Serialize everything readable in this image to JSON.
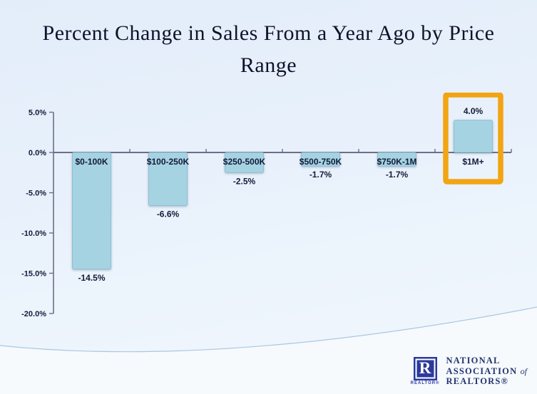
{
  "slide": {
    "title": "Percent Change in Sales From a Year Ago by Price Range"
  },
  "chart_data": {
    "type": "bar",
    "title": "Percent Change in Sales From a Year Ago by Price Range",
    "categories": [
      "$0-100K",
      "$100-250K",
      "$250-500K",
      "$500-750K",
      "$750K-1M",
      "$1M+"
    ],
    "values": [
      -14.5,
      -6.6,
      -2.5,
      -1.7,
      -1.7,
      4.0
    ],
    "value_labels": [
      "-14.5%",
      "-6.6%",
      "-2.5%",
      "-1.7%",
      "-1.7%",
      "4.0%"
    ],
    "y_ticks": [
      5,
      0,
      -5,
      -10,
      -15,
      -20
    ],
    "y_tick_labels": [
      "5.0%",
      "0.0%",
      "-5.0%",
      "-10.0%",
      "-15.0%",
      "-20.0%"
    ],
    "ylim": [
      -20,
      5
    ],
    "grid": false,
    "legend": false,
    "highlight": {
      "category": "$1M+",
      "color": "#f2a413"
    },
    "colors": {
      "bar_fill": "#a5d3e1",
      "bar_border": "#8fc0d4",
      "axis": "#6e6e88",
      "label_text": "#141a3a"
    }
  },
  "logo": {
    "seal_letter": "R",
    "seal_caption": "REALTOR®",
    "line1": "NATIONAL",
    "line2": "ASSOCIATION",
    "line2_suffix": "of",
    "line3": "REALTORS®"
  }
}
